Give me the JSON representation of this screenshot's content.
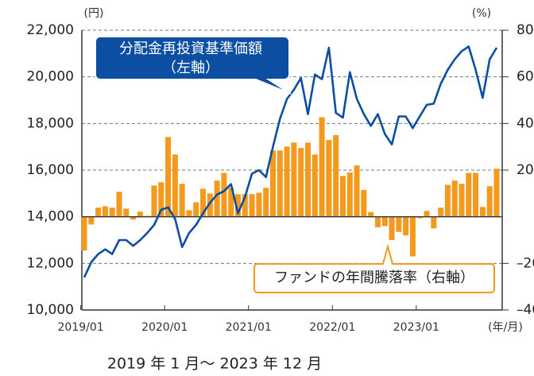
{
  "chart_data": {
    "type": "bar-line",
    "subtitle": "2019 年 1 月〜 2023 年 12 月",
    "y_unit": "(円)",
    "y2_unit": "(%)",
    "x_unit": "(年/月)",
    "annotations": [
      "分配金再投資基準価額",
      "（左軸）",
      "ファンドの年間騰落率（右軸）"
    ],
    "categories": [
      "2019/01",
      null,
      null,
      null,
      null,
      null,
      null,
      null,
      null,
      null,
      null,
      null,
      "2020/01",
      null,
      null,
      null,
      null,
      null,
      null,
      null,
      null,
      null,
      null,
      null,
      "2021/01",
      null,
      null,
      null,
      null,
      null,
      null,
      null,
      null,
      null,
      null,
      null,
      "2022/01",
      null,
      null,
      null,
      null,
      null,
      null,
      null,
      null,
      null,
      null,
      null,
      "2023/01",
      null,
      null,
      null,
      null,
      null,
      null,
      null,
      null,
      null,
      null,
      null
    ],
    "ylim": [
      10000,
      22000
    ],
    "yticks": [
      {
        "value": 10000,
        "label": "10,000"
      },
      {
        "value": 12000,
        "label": "12,000"
      },
      {
        "value": 14000,
        "label": "14,000"
      },
      {
        "value": 16000,
        "label": "16,000"
      },
      {
        "value": 18000,
        "label": "18,000"
      },
      {
        "value": 20000,
        "label": "20,000"
      },
      {
        "value": 22000,
        "label": "22,000"
      }
    ],
    "y2lim": [
      -40,
      80
    ],
    "y2ticks": [
      {
        "value": -40,
        "label": "–40"
      },
      {
        "value": -20,
        "label": "–20"
      },
      20,
      40,
      60,
      80
    ],
    "grid": true,
    "series": [
      {
        "name": "ファンドの年間騰落率",
        "type": "bar",
        "axis": "y2",
        "color": "#f39a1e",
        "values": [
          -14.5,
          -3.3,
          3.9,
          4.5,
          3.9,
          10.7,
          3.5,
          -1.2,
          2.2,
          0.4,
          13.4,
          14.8,
          34.2,
          26.7,
          14.1,
          2.8,
          6.2,
          12,
          10,
          15.5,
          18.8,
          12.4,
          9.7,
          9.7,
          9.7,
          10.3,
          12.4,
          28.4,
          28.4,
          30.1,
          31.8,
          29.5,
          31.8,
          26.7,
          42.7,
          32.9,
          35,
          17.5,
          19,
          22,
          11.5,
          2,
          -4.5,
          -4,
          -10,
          -6.5,
          -8,
          -17,
          -0.6,
          2.5,
          -5,
          3.9,
          13.7,
          15.5,
          14.1,
          18.8,
          18.8,
          4.2,
          13.1,
          20.6
        ]
      },
      {
        "name": "分配金再投資基準価額",
        "type": "line",
        "color": "#0b4ea2",
        "values": [
          11400,
          12050,
          12400,
          12600,
          12400,
          13000,
          13000,
          12750,
          13000,
          13300,
          13650,
          14300,
          14400,
          13900,
          12700,
          13300,
          13650,
          14150,
          14600,
          14950,
          15100,
          15400,
          14150,
          14850,
          15850,
          16000,
          15700,
          17000,
          18200,
          19050,
          19450,
          19950,
          18400,
          20100,
          19900,
          21250,
          18450,
          18250,
          20200,
          19050,
          18400,
          17900,
          18400,
          17550,
          17100,
          18300,
          18300,
          17800,
          18300,
          18800,
          18850,
          19700,
          20300,
          20750,
          21100,
          21300,
          20300,
          19100,
          20750,
          21250
        ]
      }
    ]
  }
}
